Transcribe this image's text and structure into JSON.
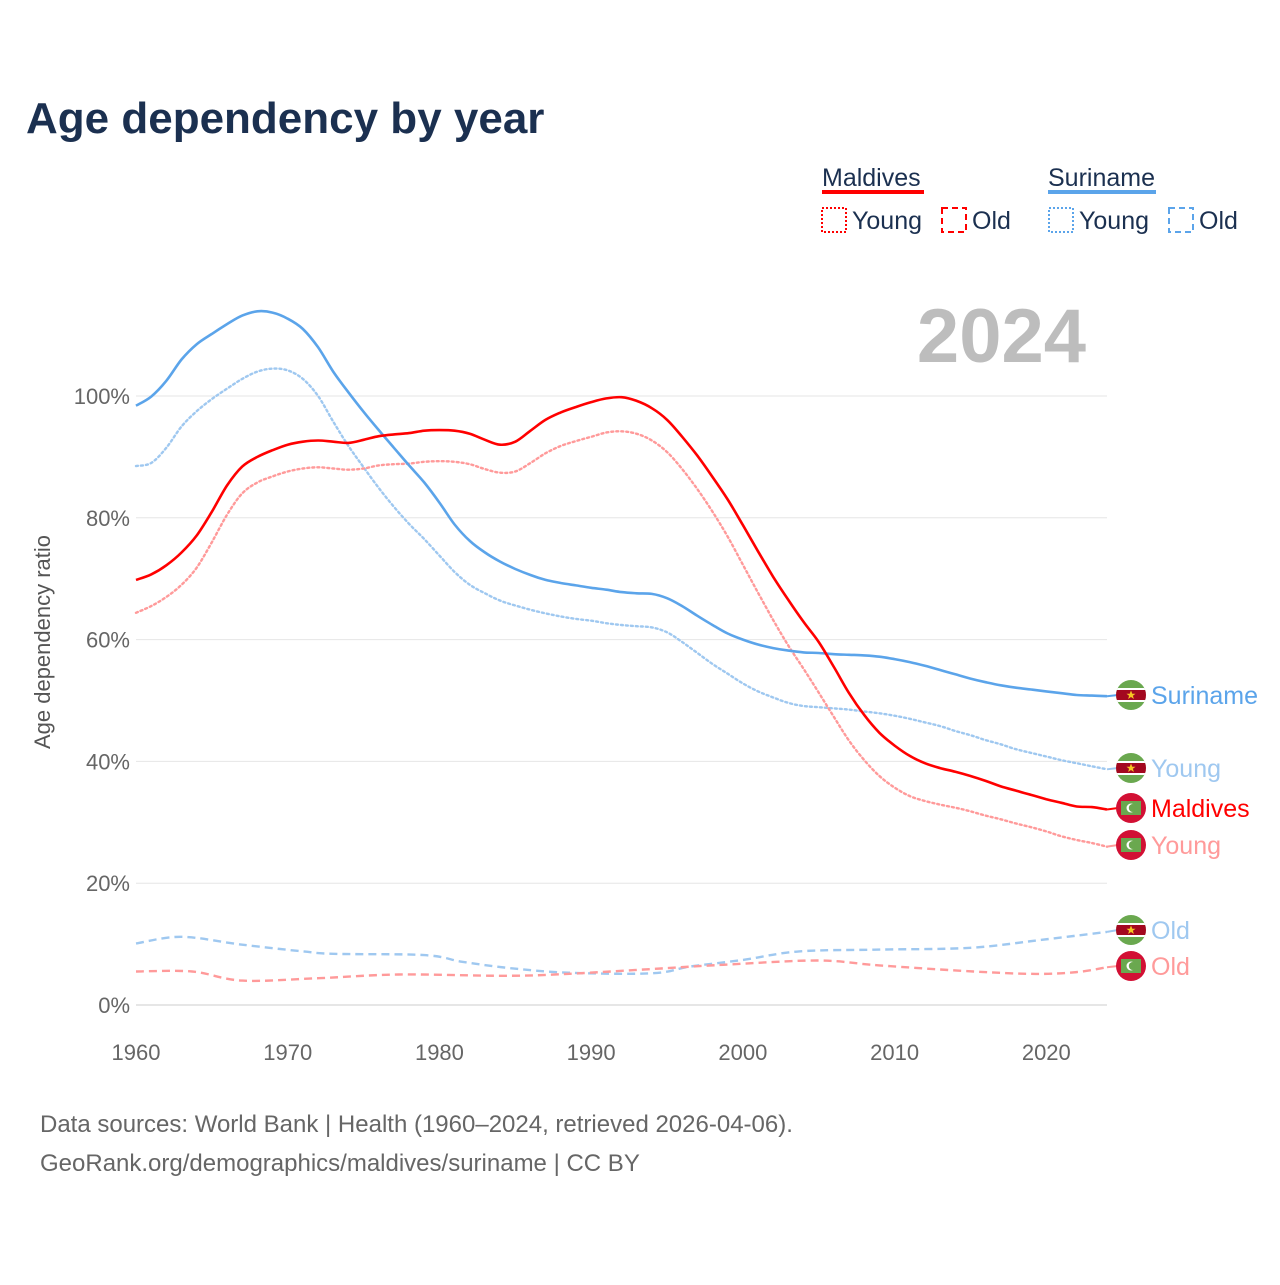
{
  "chart_data": {
    "type": "line",
    "title": "Age dependency by year",
    "ylabel": "Age dependency ratio",
    "xlabel": "",
    "xlim": [
      1960,
      2024
    ],
    "ylim": [
      0,
      115
    ],
    "x_ticks": [
      "1960",
      "1970",
      "1980",
      "1990",
      "2000",
      "2010",
      "2020"
    ],
    "x_tick_values": [
      1960,
      1970,
      1980,
      1990,
      2000,
      2010,
      2020
    ],
    "y_ticks": [
      "0%",
      "20%",
      "40%",
      "60%",
      "80%",
      "100%"
    ],
    "y_tick_values": [
      0,
      20,
      40,
      60,
      80,
      100
    ],
    "grid": true,
    "year_overlay": "2024",
    "legend": {
      "placement": "top-right",
      "groups": [
        {
          "country": "Maldives",
          "color": "#ff0000",
          "items": [
            "Young",
            "Old"
          ]
        },
        {
          "country": "Suriname",
          "color": "#5ba4ea",
          "items": [
            "Young",
            "Old"
          ]
        }
      ]
    },
    "series": [
      {
        "name": "Suriname",
        "label": "Suriname",
        "country": "Suriname",
        "kind": "total",
        "color": "#5ba4ea",
        "dash": "solid",
        "start_year": 1960,
        "values": [
          98.4,
          99.9,
          102.5,
          106,
          108.5,
          110.2,
          111.8,
          113.2,
          113.9,
          113.7,
          112.7,
          111,
          108,
          104,
          100.6,
          97.4,
          94.4,
          91.5,
          88.6,
          85.8,
          82.5,
          78.9,
          76.2,
          74.3,
          72.8,
          71.6,
          70.6,
          69.8,
          69.3,
          68.9,
          68.5,
          68.2,
          67.8,
          67.6,
          67.5,
          66.8,
          65.5,
          63.9,
          62.4,
          61,
          60,
          59.2,
          58.6,
          58.2,
          57.9,
          57.8,
          57.6,
          57.5,
          57.4,
          57.2,
          56.8,
          56.3,
          55.7,
          55,
          54.3,
          53.6,
          53,
          52.5,
          52.1,
          51.8,
          51.5,
          51.2,
          50.9,
          50.8,
          50.7
        ]
      },
      {
        "name": "Suriname Young",
        "label": "Young",
        "country": "Suriname",
        "kind": "young",
        "color": "#9fc8f0",
        "dash": "dotted",
        "start_year": 1960,
        "values": [
          88.5,
          89,
          91.5,
          95,
          97.5,
          99.5,
          101.2,
          102.8,
          104,
          104.5,
          104.2,
          102.8,
          100,
          95.8,
          91.8,
          88.3,
          84.9,
          81.8,
          79,
          76.5,
          73.8,
          71.1,
          69,
          67.6,
          66.4,
          65.6,
          64.9,
          64.3,
          63.8,
          63.4,
          63.1,
          62.7,
          62.4,
          62.2,
          62,
          61.2,
          59.6,
          57.8,
          56,
          54.4,
          52.8,
          51.5,
          50.5,
          49.6,
          49.1,
          48.9,
          48.7,
          48.5,
          48.2,
          47.9,
          47.5,
          47,
          46.4,
          45.8,
          45,
          44.3,
          43.5,
          42.8,
          42,
          41.4,
          40.8,
          40.2,
          39.7,
          39.2,
          38.7
        ]
      },
      {
        "name": "Maldives",
        "label": "Maldives",
        "country": "Maldives",
        "kind": "total",
        "color": "#ff0000",
        "dash": "solid",
        "start_year": 1960,
        "values": [
          69.8,
          70.7,
          72.2,
          74.3,
          77.1,
          81,
          85.3,
          88.4,
          90,
          91.1,
          92,
          92.5,
          92.7,
          92.5,
          92.3,
          92.8,
          93.4,
          93.7,
          93.9,
          94.3,
          94.4,
          94.3,
          93.8,
          92.8,
          92,
          92.5,
          94.3,
          96.1,
          97.3,
          98.2,
          99,
          99.6,
          99.8,
          99.2,
          98,
          96.1,
          93.3,
          90.2,
          86.7,
          83,
          78.8,
          74.5,
          70.3,
          66.5,
          62.9,
          59.6,
          55.5,
          51.2,
          47.6,
          44.7,
          42.6,
          40.9,
          39.7,
          38.9,
          38.3,
          37.6,
          36.8,
          35.9,
          35.2,
          34.5,
          33.8,
          33.2,
          32.6,
          32.5,
          32.1
        ]
      },
      {
        "name": "Maldives Young",
        "label": "Young",
        "country": "Maldives",
        "kind": "young",
        "color": "#ff9a9a",
        "dash": "dotted",
        "start_year": 1960,
        "values": [
          64.4,
          65.5,
          67,
          69,
          71.8,
          76,
          80.5,
          84,
          85.8,
          86.8,
          87.6,
          88.1,
          88.3,
          88.1,
          87.9,
          88.1,
          88.6,
          88.8,
          88.9,
          89.2,
          89.3,
          89.2,
          88.8,
          88,
          87.4,
          87.6,
          89,
          90.6,
          91.8,
          92.6,
          93.3,
          94,
          94.2,
          93.8,
          92.7,
          90.8,
          88,
          84.7,
          81,
          76.9,
          72.3,
          67.7,
          63.2,
          59,
          55.2,
          51.3,
          47.3,
          43.4,
          40.2,
          37.6,
          35.7,
          34.3,
          33.5,
          32.9,
          32.4,
          31.8,
          31.1,
          30.5,
          29.8,
          29.2,
          28.5,
          27.7,
          27.1,
          26.6,
          26
        ]
      },
      {
        "name": "Suriname Old",
        "label": "Old",
        "country": "Suriname",
        "kind": "old",
        "color": "#9fc8f0",
        "dash": "dashed",
        "points": [
          [
            1960,
            10.1
          ],
          [
            1963,
            11.2
          ],
          [
            1967,
            9.9
          ],
          [
            1971,
            8.8
          ],
          [
            1973,
            8.4
          ],
          [
            1979,
            8.2
          ],
          [
            1981.5,
            7.1
          ],
          [
            1984.5,
            6.1
          ],
          [
            1988.5,
            5.3
          ],
          [
            1994,
            5.2
          ],
          [
            1996.5,
            6.3
          ],
          [
            2000,
            7.4
          ],
          [
            2003.7,
            8.8
          ],
          [
            2009,
            9.1
          ],
          [
            2015,
            9.4
          ],
          [
            2019.7,
            10.7
          ],
          [
            2024,
            12
          ]
        ]
      },
      {
        "name": "Maldives Old",
        "label": "Old",
        "country": "Maldives",
        "kind": "old",
        "color": "#ff9a9a",
        "dash": "dashed",
        "points": [
          [
            1960,
            5.5
          ],
          [
            1963.7,
            5.5
          ],
          [
            1967,
            4.0
          ],
          [
            1972,
            4.4
          ],
          [
            1977.3,
            5.0
          ],
          [
            1984.3,
            4.8
          ],
          [
            1988.4,
            5.1
          ],
          [
            1994.6,
            6.0
          ],
          [
            1998.7,
            6.6
          ],
          [
            2004.9,
            7.3
          ],
          [
            2009,
            6.5
          ],
          [
            2015.2,
            5.5
          ],
          [
            2019.3,
            5.1
          ],
          [
            2022,
            5.4
          ],
          [
            2024,
            6.2
          ]
        ]
      }
    ]
  },
  "footer": {
    "line1": "Data sources: World Bank | Health (1960–2024, retrieved 2026-04-06).",
    "line2": "GeoRank.org/demographics/maldives/suriname | CC BY"
  }
}
